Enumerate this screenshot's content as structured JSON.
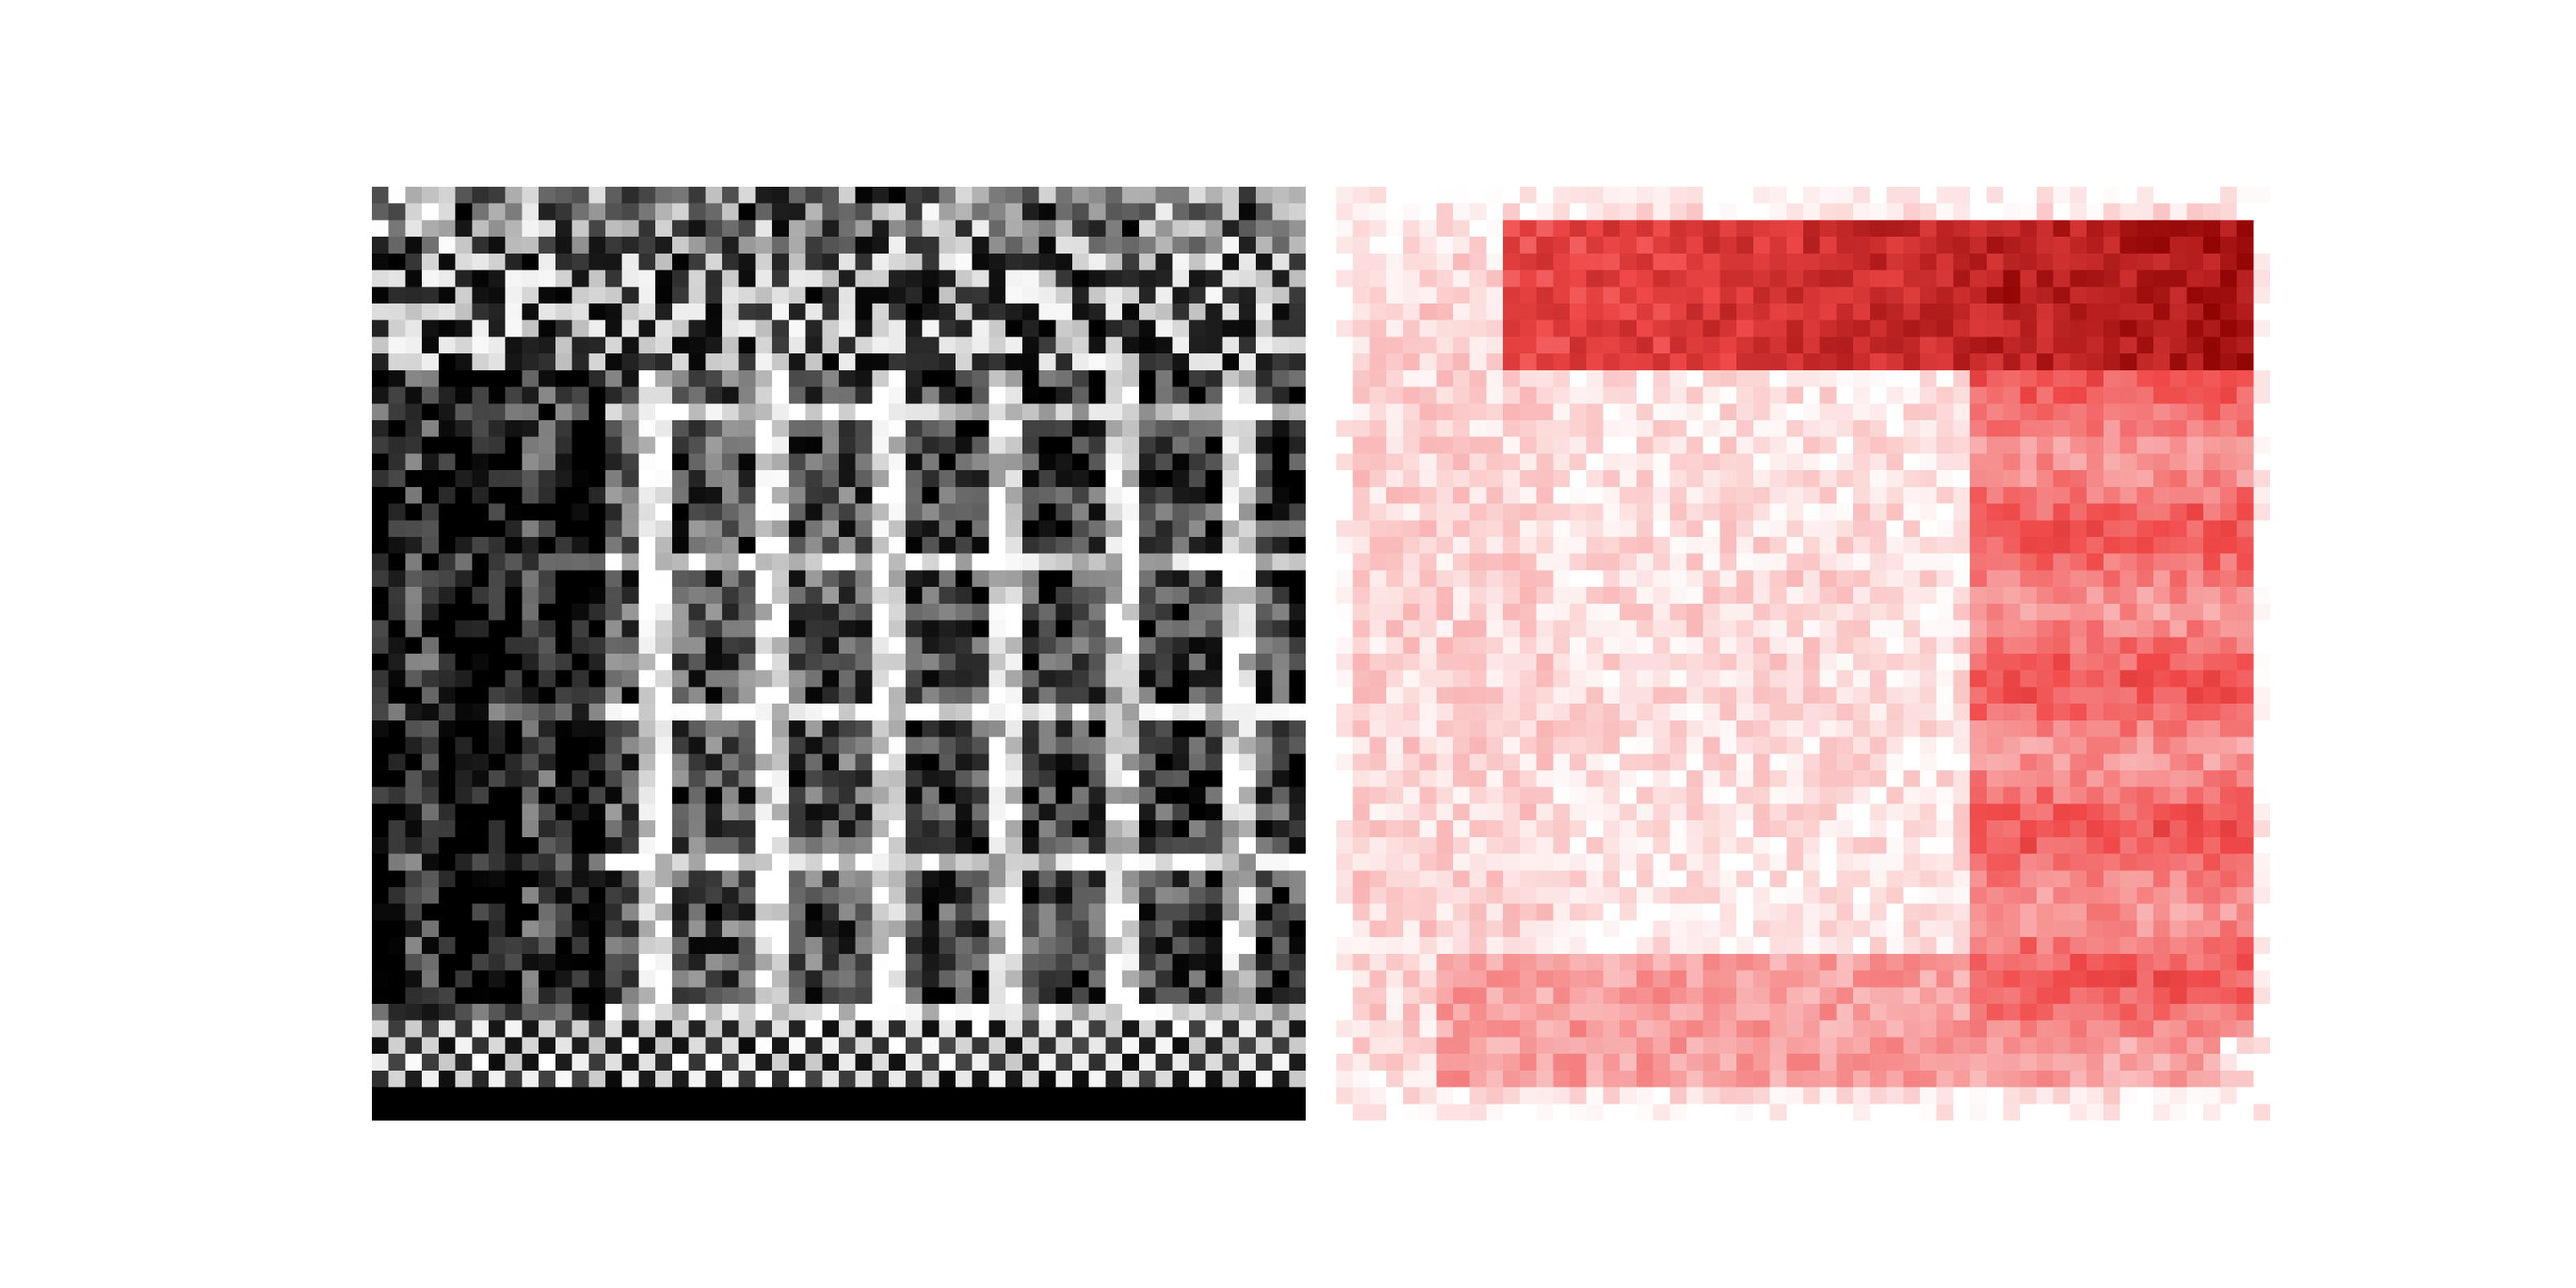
{
  "images": [
    {
      "id": "grayscale-image",
      "description_colors": {
        "low": "#000000",
        "high": "#ffffff"
      },
      "grid_cells": 56
    },
    {
      "id": "heatmap-image",
      "description_colors": {
        "low": "#ffffff",
        "high": "#8b0000",
        "mid": "#f04848"
      },
      "grid_cells": 56
    }
  ],
  "colors": {
    "background": "#ffffff"
  }
}
